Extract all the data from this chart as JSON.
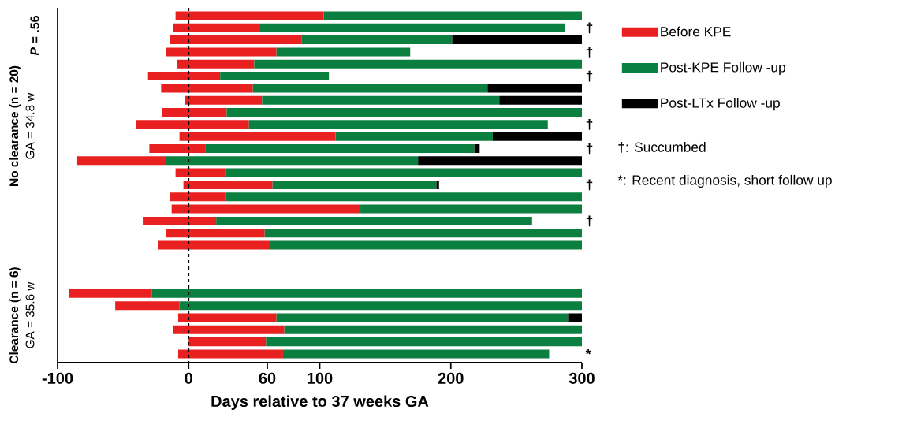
{
  "chart_data": {
    "type": "bar",
    "orientation": "horizontal",
    "categories": [
      null,
      null,
      null,
      null,
      null,
      null,
      null,
      null,
      null,
      null,
      null,
      null,
      null,
      null,
      null,
      null,
      null,
      null,
      null,
      null,
      null,
      null,
      null,
      null,
      null,
      null,
      null,
      null,
      null
    ],
    "series": [
      {
        "name": "Before KPE",
        "color": "#e8201f",
        "base": [
          -10,
          -12,
          -14,
          -17,
          -9,
          -31,
          -21,
          -3,
          -20,
          -40,
          -7,
          -30,
          -85,
          -10,
          -4,
          -14,
          -13,
          -35,
          -17,
          -23,
          null,
          null,
          null,
          -91,
          -56,
          -8,
          -12,
          0,
          -8
        ],
        "values": [
          113,
          66,
          100,
          84,
          59,
          55,
          70,
          59,
          49,
          86,
          119,
          43,
          68,
          38,
          68,
          42,
          144,
          56,
          75,
          85,
          null,
          null,
          null,
          63,
          49,
          75,
          85,
          59,
          80
        ]
      },
      {
        "name": "Post-KPE Follow -up",
        "color": "#0b7f3f",
        "base": [
          103,
          54,
          86,
          67,
          50,
          24,
          49,
          56,
          29,
          46,
          112,
          13,
          -17,
          28,
          64,
          28,
          131,
          21,
          58,
          62,
          null,
          null,
          null,
          -28,
          -7,
          67,
          73,
          59,
          72
        ],
        "values": [
          197,
          233,
          115,
          102,
          250,
          83,
          179,
          181,
          271,
          228,
          120,
          205,
          192,
          272,
          125,
          272,
          169,
          241,
          242,
          238,
          null,
          null,
          null,
          328,
          307,
          223,
          227,
          241,
          203
        ],
        "value_labels": [
          null,
          "†",
          null,
          "†",
          null,
          "†",
          null,
          null,
          null,
          "†",
          null,
          "†",
          null,
          null,
          "†",
          null,
          null,
          "†",
          null,
          null,
          null,
          null,
          null,
          null,
          null,
          null,
          null,
          null,
          "*"
        ]
      },
      {
        "name": "Post-LTx Follow -up",
        "color": "#000000",
        "base": [
          null,
          null,
          201,
          null,
          null,
          null,
          228,
          237,
          null,
          null,
          232,
          218,
          175,
          null,
          189,
          null,
          null,
          null,
          null,
          null,
          null,
          null,
          null,
          null,
          null,
          290,
          null,
          null,
          null
        ],
        "values": [
          null,
          null,
          99,
          null,
          null,
          null,
          72,
          63,
          null,
          null,
          68,
          4,
          125,
          null,
          2,
          null,
          null,
          null,
          null,
          null,
          null,
          null,
          null,
          null,
          null,
          10,
          null,
          null,
          null
        ]
      }
    ],
    "xlim": [
      -100,
      300
    ],
    "xticks": [
      -100,
      0,
      60,
      100,
      200,
      300
    ],
    "tick_labels": "x",
    "xlabel": "Days relative to 37 weeks GA",
    "ref_lines": [
      {
        "axis": "x",
        "value": 0,
        "line_style": "dashed",
        "color": "#000000"
      }
    ],
    "legend": "right",
    "annotations": [
      "*P* = .56",
      "No clearance (n = 20)",
      "GA = 34.8 w",
      "Clearance (n = 6)",
      "GA = 35.6 w",
      "**†**: Succumbed",
      "*: Recent diagnosis, short follow up"
    ]
  }
}
